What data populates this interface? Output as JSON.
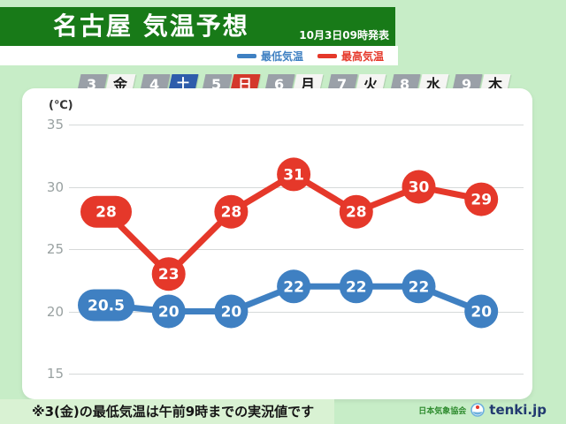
{
  "header": {
    "title": "名古屋 気温予想",
    "issued": "10月3日09時発表"
  },
  "legend": {
    "min_label": "最低気温",
    "max_label": "最高気温"
  },
  "dates": [
    {
      "day": "3",
      "weekday": "金",
      "type": "weekday"
    },
    {
      "day": "4",
      "weekday": "土",
      "type": "saturday"
    },
    {
      "day": "5",
      "weekday": "日",
      "type": "sunday"
    },
    {
      "day": "6",
      "weekday": "月",
      "type": "weekday"
    },
    {
      "day": "7",
      "weekday": "火",
      "type": "weekday"
    },
    {
      "day": "8",
      "weekday": "水",
      "type": "weekday"
    },
    {
      "day": "9",
      "weekday": "木",
      "type": "weekday"
    }
  ],
  "chart_data": {
    "type": "line",
    "title": "名古屋 気温予想",
    "unit_label": "(℃)",
    "categories": [
      "3 金",
      "4 土",
      "5 日",
      "6 月",
      "7 火",
      "8 水",
      "9 木"
    ],
    "y_ticks": [
      35,
      30,
      25,
      20,
      15
    ],
    "ylim": [
      13,
      37
    ],
    "grid": true,
    "legend_position": "top",
    "series": [
      {
        "name": "最高気温",
        "color": "#e5382a",
        "values": [
          28,
          23,
          28,
          31,
          28,
          30,
          29
        ],
        "labels": [
          "28",
          "23",
          "28",
          "31",
          "28",
          "30",
          "29"
        ]
      },
      {
        "name": "最低気温",
        "color": "#3f80c2",
        "values": [
          20.5,
          20,
          20,
          22,
          22,
          22,
          20
        ],
        "labels": [
          "20.5",
          "20",
          "20",
          "22",
          "22",
          "22",
          "20"
        ]
      }
    ]
  },
  "footnote": "※3(金)の最低気温は午前9時までの実況値です",
  "branding": {
    "org": "日本気象協会",
    "site": "tenki.jp"
  },
  "colors": {
    "background": "#c7edc7",
    "header_green": "#187a18",
    "footnote_band": "#d9f2d3",
    "date_number_gray": "#9aa0a8",
    "saturday_blue": "#2e5cab",
    "sunday_red": "#d4382c",
    "max_line_red": "#e5382a",
    "min_line_blue": "#3f80c2",
    "site_navy": "#223a70",
    "org_green": "#2e8b2e"
  }
}
